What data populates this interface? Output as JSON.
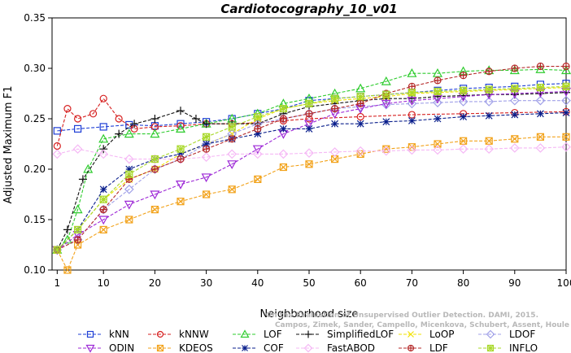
{
  "chart_data": {
    "type": "line",
    "title": "Cardiotocography_10_v01",
    "xlabel": "Neighborhood size",
    "ylabel": "Adjusted Maximum F1",
    "xlim": [
      0,
      100
    ],
    "ylim": [
      0.1,
      0.35
    ],
    "xticks": [
      "1",
      "10",
      "20",
      "30",
      "40",
      "50",
      "60",
      "70",
      "80",
      "90",
      "100"
    ],
    "yticks": [
      "0.10",
      "0.15",
      "0.20",
      "0.25",
      "0.30",
      "0.35"
    ],
    "grid": false,
    "legend_position": "bottom",
    "watermark": [
      "Campos, Zimek, Sander, Campello, Micenkova, Schubert, Assent, Houle",
      "On the Evaluation of Unsupervised Outlier Detection. DAMI, 2015."
    ],
    "series": [
      {
        "name": "kNN",
        "color": "#1f3fd6",
        "marker": "square",
        "points": [
          [
            1,
            0.238
          ],
          [
            5,
            0.24
          ],
          [
            10,
            0.242
          ],
          [
            15,
            0.244
          ],
          [
            20,
            0.243
          ],
          [
            25,
            0.245
          ],
          [
            30,
            0.247
          ],
          [
            35,
            0.25
          ],
          [
            40,
            0.255
          ],
          [
            45,
            0.26
          ],
          [
            50,
            0.268
          ],
          [
            55,
            0.27
          ],
          [
            60,
            0.272
          ],
          [
            65,
            0.274
          ],
          [
            70,
            0.276
          ],
          [
            75,
            0.278
          ],
          [
            80,
            0.28
          ],
          [
            85,
            0.281
          ],
          [
            90,
            0.282
          ],
          [
            95,
            0.284
          ],
          [
            100,
            0.285
          ]
        ]
      },
      {
        "name": "kNNW",
        "color": "#d62020",
        "marker": "circle",
        "points": [
          [
            1,
            0.223
          ],
          [
            3,
            0.26
          ],
          [
            5,
            0.25
          ],
          [
            8,
            0.255
          ],
          [
            10,
            0.27
          ],
          [
            13,
            0.25
          ],
          [
            16,
            0.24
          ],
          [
            20,
            0.242
          ],
          [
            25,
            0.243
          ],
          [
            30,
            0.245
          ],
          [
            35,
            0.245
          ],
          [
            40,
            0.246
          ],
          [
            45,
            0.248
          ],
          [
            50,
            0.25
          ],
          [
            60,
            0.252
          ],
          [
            70,
            0.254
          ],
          [
            80,
            0.255
          ],
          [
            90,
            0.256
          ],
          [
            100,
            0.257
          ]
        ]
      },
      {
        "name": "LOF",
        "color": "#2ecc2e",
        "marker": "triangle-up",
        "points": [
          [
            1,
            0.12
          ],
          [
            3,
            0.13
          ],
          [
            5,
            0.16
          ],
          [
            7,
            0.2
          ],
          [
            10,
            0.23
          ],
          [
            15,
            0.235
          ],
          [
            20,
            0.235
          ],
          [
            25,
            0.24
          ],
          [
            30,
            0.245
          ],
          [
            35,
            0.25
          ],
          [
            40,
            0.255
          ],
          [
            45,
            0.265
          ],
          [
            50,
            0.27
          ],
          [
            55,
            0.275
          ],
          [
            60,
            0.28
          ],
          [
            65,
            0.287
          ],
          [
            70,
            0.295
          ],
          [
            75,
            0.295
          ],
          [
            80,
            0.297
          ],
          [
            85,
            0.298
          ],
          [
            90,
            0.298
          ],
          [
            95,
            0.299
          ],
          [
            100,
            0.298
          ]
        ]
      },
      {
        "name": "SimplifiedLOF",
        "color": "#111111",
        "marker": "plus",
        "points": [
          [
            1,
            0.12
          ],
          [
            3,
            0.14
          ],
          [
            6,
            0.19
          ],
          [
            10,
            0.22
          ],
          [
            13,
            0.235
          ],
          [
            16,
            0.245
          ],
          [
            20,
            0.25
          ],
          [
            25,
            0.258
          ],
          [
            28,
            0.25
          ],
          [
            30,
            0.245
          ],
          [
            35,
            0.245
          ],
          [
            40,
            0.245
          ],
          [
            45,
            0.255
          ],
          [
            50,
            0.262
          ],
          [
            55,
            0.265
          ],
          [
            60,
            0.268
          ],
          [
            65,
            0.27
          ],
          [
            70,
            0.27
          ],
          [
            75,
            0.272
          ],
          [
            80,
            0.273
          ],
          [
            85,
            0.274
          ],
          [
            90,
            0.274
          ],
          [
            95,
            0.275
          ],
          [
            100,
            0.276
          ]
        ]
      },
      {
        "name": "LoOP",
        "color": "#f2e200",
        "marker": "x",
        "points": [
          [
            1,
            0.12
          ],
          [
            5,
            0.14
          ],
          [
            10,
            0.17
          ],
          [
            15,
            0.19
          ],
          [
            20,
            0.2
          ],
          [
            25,
            0.215
          ],
          [
            30,
            0.225
          ],
          [
            35,
            0.235
          ],
          [
            40,
            0.25
          ],
          [
            45,
            0.26
          ],
          [
            50,
            0.265
          ],
          [
            55,
            0.268
          ],
          [
            60,
            0.27
          ],
          [
            65,
            0.272
          ],
          [
            70,
            0.275
          ],
          [
            75,
            0.276
          ],
          [
            80,
            0.277
          ],
          [
            85,
            0.278
          ],
          [
            90,
            0.279
          ],
          [
            95,
            0.28
          ],
          [
            100,
            0.281
          ]
        ]
      },
      {
        "name": "LDOF",
        "color": "#a0a0e8",
        "marker": "diamond",
        "points": [
          [
            1,
            0.12
          ],
          [
            5,
            0.13
          ],
          [
            10,
            0.16
          ],
          [
            15,
            0.18
          ],
          [
            20,
            0.2
          ],
          [
            25,
            0.21
          ],
          [
            30,
            0.225
          ],
          [
            35,
            0.235
          ],
          [
            40,
            0.245
          ],
          [
            45,
            0.25
          ],
          [
            50,
            0.255
          ],
          [
            55,
            0.26
          ],
          [
            60,
            0.262
          ],
          [
            65,
            0.264
          ],
          [
            70,
            0.265
          ],
          [
            75,
            0.266
          ],
          [
            80,
            0.267
          ],
          [
            85,
            0.267
          ],
          [
            90,
            0.268
          ],
          [
            95,
            0.268
          ],
          [
            100,
            0.268
          ]
        ]
      },
      {
        "name": "ODIN",
        "color": "#9d28d6",
        "marker": "triangle-down",
        "points": [
          [
            1,
            0.12
          ],
          [
            5,
            0.135
          ],
          [
            10,
            0.15
          ],
          [
            15,
            0.165
          ],
          [
            20,
            0.175
          ],
          [
            25,
            0.185
          ],
          [
            30,
            0.192
          ],
          [
            35,
            0.205
          ],
          [
            40,
            0.22
          ],
          [
            45,
            0.235
          ],
          [
            50,
            0.245
          ],
          [
            55,
            0.255
          ],
          [
            60,
            0.26
          ],
          [
            65,
            0.265
          ],
          [
            70,
            0.268
          ],
          [
            75,
            0.27
          ],
          [
            80,
            0.272
          ],
          [
            85,
            0.274
          ],
          [
            90,
            0.275
          ],
          [
            95,
            0.276
          ],
          [
            100,
            0.277
          ]
        ]
      },
      {
        "name": "KDEOS",
        "color": "#f2a21a",
        "marker": "square-x",
        "points": [
          [
            1,
            0.12
          ],
          [
            3,
            0.1
          ],
          [
            5,
            0.125
          ],
          [
            10,
            0.14
          ],
          [
            15,
            0.15
          ],
          [
            20,
            0.16
          ],
          [
            25,
            0.168
          ],
          [
            30,
            0.175
          ],
          [
            35,
            0.18
          ],
          [
            40,
            0.19
          ],
          [
            45,
            0.202
          ],
          [
            50,
            0.205
          ],
          [
            55,
            0.21
          ],
          [
            60,
            0.215
          ],
          [
            65,
            0.22
          ],
          [
            70,
            0.222
          ],
          [
            75,
            0.225
          ],
          [
            80,
            0.228
          ],
          [
            85,
            0.228
          ],
          [
            90,
            0.23
          ],
          [
            95,
            0.232
          ],
          [
            100,
            0.232
          ]
        ]
      },
      {
        "name": "COF",
        "color": "#0a1f8c",
        "marker": "asterisk",
        "points": [
          [
            1,
            0.12
          ],
          [
            5,
            0.14
          ],
          [
            10,
            0.18
          ],
          [
            15,
            0.2
          ],
          [
            20,
            0.21
          ],
          [
            25,
            0.215
          ],
          [
            30,
            0.225
          ],
          [
            35,
            0.23
          ],
          [
            40,
            0.235
          ],
          [
            45,
            0.24
          ],
          [
            50,
            0.24
          ],
          [
            55,
            0.245
          ],
          [
            60,
            0.245
          ],
          [
            65,
            0.247
          ],
          [
            70,
            0.248
          ],
          [
            75,
            0.25
          ],
          [
            80,
            0.252
          ],
          [
            85,
            0.253
          ],
          [
            90,
            0.254
          ],
          [
            95,
            0.255
          ],
          [
            100,
            0.256
          ]
        ]
      },
      {
        "name": "FastABOD",
        "color": "#f5b8f5",
        "marker": "diamond",
        "points": [
          [
            1,
            0.215
          ],
          [
            5,
            0.22
          ],
          [
            10,
            0.215
          ],
          [
            15,
            0.21
          ],
          [
            20,
            0.21
          ],
          [
            25,
            0.21
          ],
          [
            30,
            0.212
          ],
          [
            35,
            0.215
          ],
          [
            40,
            0.215
          ],
          [
            45,
            0.215
          ],
          [
            50,
            0.216
          ],
          [
            55,
            0.217
          ],
          [
            60,
            0.218
          ],
          [
            65,
            0.218
          ],
          [
            70,
            0.219
          ],
          [
            75,
            0.219
          ],
          [
            80,
            0.22
          ],
          [
            85,
            0.22
          ],
          [
            90,
            0.221
          ],
          [
            95,
            0.221
          ],
          [
            100,
            0.222
          ]
        ]
      },
      {
        "name": "LDF",
        "color": "#b52a2a",
        "marker": "circle-plus",
        "points": [
          [
            1,
            0.12
          ],
          [
            5,
            0.13
          ],
          [
            10,
            0.16
          ],
          [
            15,
            0.19
          ],
          [
            20,
            0.2
          ],
          [
            25,
            0.21
          ],
          [
            30,
            0.22
          ],
          [
            35,
            0.23
          ],
          [
            40,
            0.24
          ],
          [
            45,
            0.25
          ],
          [
            50,
            0.255
          ],
          [
            55,
            0.26
          ],
          [
            60,
            0.265
          ],
          [
            65,
            0.275
          ],
          [
            70,
            0.282
          ],
          [
            75,
            0.288
          ],
          [
            80,
            0.293
          ],
          [
            85,
            0.297
          ],
          [
            90,
            0.3
          ],
          [
            95,
            0.302
          ],
          [
            100,
            0.302
          ]
        ]
      },
      {
        "name": "INFLO",
        "color": "#a8d82a",
        "marker": "square-cross",
        "points": [
          [
            1,
            0.12
          ],
          [
            5,
            0.14
          ],
          [
            10,
            0.17
          ],
          [
            15,
            0.195
          ],
          [
            20,
            0.21
          ],
          [
            25,
            0.22
          ],
          [
            30,
            0.232
          ],
          [
            35,
            0.242
          ],
          [
            40,
            0.252
          ],
          [
            45,
            0.26
          ],
          [
            50,
            0.265
          ],
          [
            55,
            0.27
          ],
          [
            60,
            0.272
          ],
          [
            65,
            0.274
          ],
          [
            70,
            0.276
          ],
          [
            75,
            0.277
          ],
          [
            80,
            0.278
          ],
          [
            85,
            0.279
          ],
          [
            90,
            0.28
          ],
          [
            95,
            0.281
          ],
          [
            100,
            0.282
          ]
        ]
      }
    ],
    "legend_rows": [
      [
        "kNN",
        "kNNW",
        "LOF",
        "SimplifiedLOF",
        "LoOP",
        "LDOF"
      ],
      [
        "ODIN",
        "KDEOS",
        "COF",
        "FastABOD",
        "LDF",
        "INFLO"
      ]
    ]
  }
}
